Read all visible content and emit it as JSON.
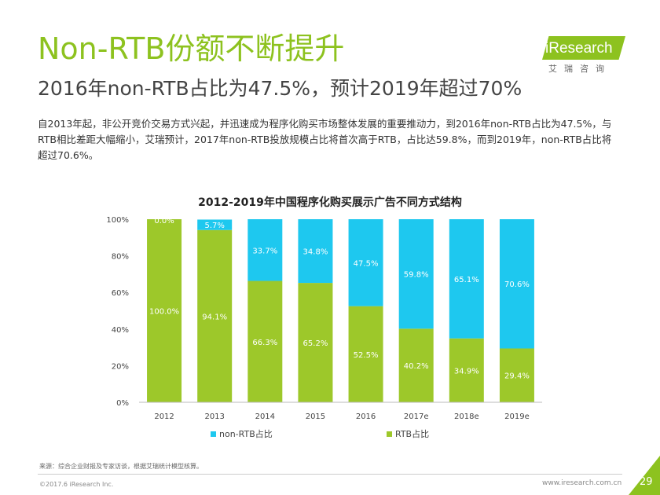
{
  "page": {
    "title": "Non-RTB份额不断提升",
    "subtitle": "2016年non-RTB占比为47.5%，预计2019年超过70%",
    "summary": "自2013年起，非公开竞价交易方式兴起，并迅速成为程序化购买市场整体发展的重要推动力，到2016年non-RTB占比为47.5%，与RTB相比差距大幅缩小，艾瑞预计，2017年non-RTB投放规模占比将首次高于RTB，占比达59.8%，而到2019年，non-RTB占比将超过70.6%。",
    "source": "来源：综合企业财报及专家访谈，根据艾瑞统计模型核算。",
    "copyright": "©2017.6 iResearch Inc.",
    "site": "www.iresearch.com.cn",
    "page_number": "29"
  },
  "logo": {
    "name": "iResearch",
    "sub": "艾瑞咨询"
  },
  "colors": {
    "accent": "#8dc21f",
    "non_rtb": "#1ec8ef",
    "rtb": "#9dc82a"
  },
  "chart_data": {
    "type": "bar",
    "stacked": true,
    "percent": true,
    "title": "2012-2019年中国程序化购买展示广告不同方式结构",
    "categories": [
      "2012",
      "2013",
      "2014",
      "2015",
      "2016",
      "2017e",
      "2018e",
      "2019e"
    ],
    "series": [
      {
        "name": "non-RTB占比",
        "color": "#1ec8ef",
        "values": [
          0.0,
          5.7,
          33.7,
          34.8,
          47.5,
          59.8,
          65.1,
          70.6
        ]
      },
      {
        "name": "RTB占比",
        "color": "#9dc82a",
        "values": [
          100.0,
          94.1,
          66.3,
          65.2,
          52.5,
          40.2,
          34.9,
          29.4
        ]
      }
    ],
    "ylim": [
      0,
      100
    ],
    "yticks": [
      "0%",
      "20%",
      "40%",
      "60%",
      "80%",
      "100%"
    ],
    "grid": false,
    "legend": "bottom"
  }
}
